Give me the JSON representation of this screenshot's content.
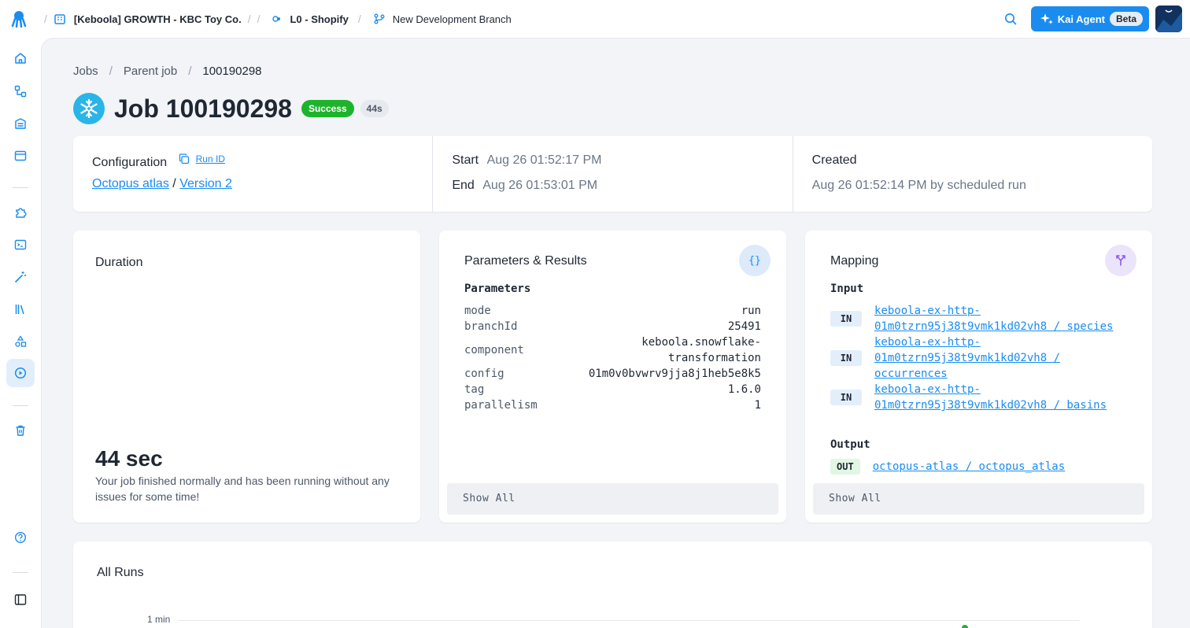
{
  "topbar": {
    "project": "[Keboola] GROWTH - KBC Toy Co.",
    "folder": "L0 - Shopify",
    "branch": "New Development Branch",
    "kai_label": "Kai Agent",
    "kai_badge": "Beta"
  },
  "breadcrumb": [
    "Jobs",
    "Parent job",
    "100190298"
  ],
  "job": {
    "title": "Job 100190298",
    "status": "Success",
    "duration_badge": "44s"
  },
  "info": {
    "configuration_label": "Configuration",
    "run_id_label": "Run ID",
    "config_name": "Octopus atlas",
    "config_sep": "/",
    "version": "Version 2",
    "start_label": "Start",
    "start_value": "Aug 26 01:52:17 PM",
    "end_label": "End",
    "end_value": "Aug 26 01:53:01 PM",
    "created_label": "Created",
    "created_value": "Aug 26 01:52:14 PM by scheduled run"
  },
  "duration": {
    "title": "Duration",
    "value": "44 sec",
    "description": "Your job finished normally and has been running without any issues for some time!"
  },
  "params": {
    "title": "Parameters & Results",
    "icon_glyph": "{}",
    "section": "Parameters",
    "rows": [
      {
        "key": "mode",
        "value": "run"
      },
      {
        "key": "branchId",
        "value": "25491"
      },
      {
        "key": "component",
        "value": "keboola.snowflake-transformation"
      },
      {
        "key": "config",
        "value": "01m0v0bvwrv9jja8j1heb5e8k5"
      },
      {
        "key": "tag",
        "value": "1.6.0"
      },
      {
        "key": "parallelism",
        "value": "1"
      }
    ],
    "show_all": "Show All"
  },
  "mapping": {
    "title": "Mapping",
    "input_label": "Input",
    "inputs": [
      {
        "tag": "IN",
        "line1": "keboola-ex-http-",
        "line2": "01m0tzrn95j38t9vmk1kd02vh8 / species"
      },
      {
        "tag": "IN",
        "line1": "keboola-ex-http-",
        "line2": "01m0tzrn95j38t9vmk1kd02vh8 /",
        "line3": "occurrences"
      },
      {
        "tag": "IN",
        "line1": "keboola-ex-http-",
        "line2": "01m0tzrn95j38t9vmk1kd02vh8 / basins"
      }
    ],
    "output_label": "Output",
    "output": {
      "tag": "OUT",
      "text": "octopus-atlas / octopus_atlas"
    },
    "show_all": "Show All"
  },
  "runs": {
    "title": "All Runs"
  },
  "chart_data": {
    "type": "scatter",
    "title": "All Runs",
    "ytick_labels": [
      "1 min"
    ],
    "points": [
      {
        "run": "100190298",
        "duration_sec": 44,
        "status": "success"
      }
    ]
  },
  "colors": {
    "accent": "#1a8cf0",
    "success": "#1db42b",
    "snowflake": "#29b5e8"
  }
}
